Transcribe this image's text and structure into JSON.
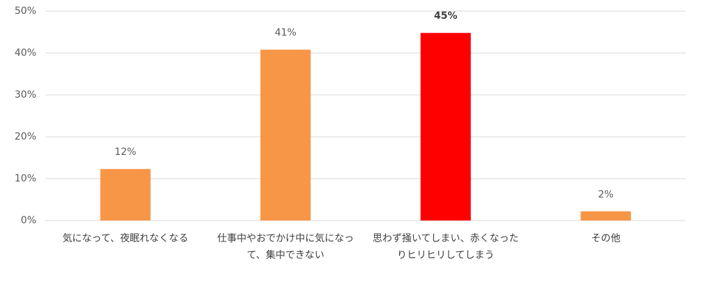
{
  "chart_data": {
    "type": "bar",
    "categories": [
      "気になって、夜眠れなくなる",
      "仕事中やおでかけ中に気になって、集中できない",
      "思わず掻いてしまい、赤くなったりヒリヒリしてしまう",
      "その他"
    ],
    "values": [
      12.3,
      40.8,
      44.8,
      2.2
    ],
    "value_labels": [
      "12%",
      "41%",
      "45%",
      "2%"
    ],
    "value_label_bold": [
      false,
      false,
      true,
      false
    ],
    "colors": [
      "#f79646",
      "#f79646",
      "#ff0000",
      "#f79646"
    ],
    "ylim": [
      0,
      50
    ],
    "yticks": [
      {
        "value": 0,
        "label": "0%"
      },
      {
        "value": 10,
        "label": "10%"
      },
      {
        "value": 20,
        "label": "20%"
      },
      {
        "value": 30,
        "label": "30%"
      },
      {
        "value": 40,
        "label": "40%"
      },
      {
        "value": 50,
        "label": "50%"
      }
    ],
    "grid": true
  }
}
